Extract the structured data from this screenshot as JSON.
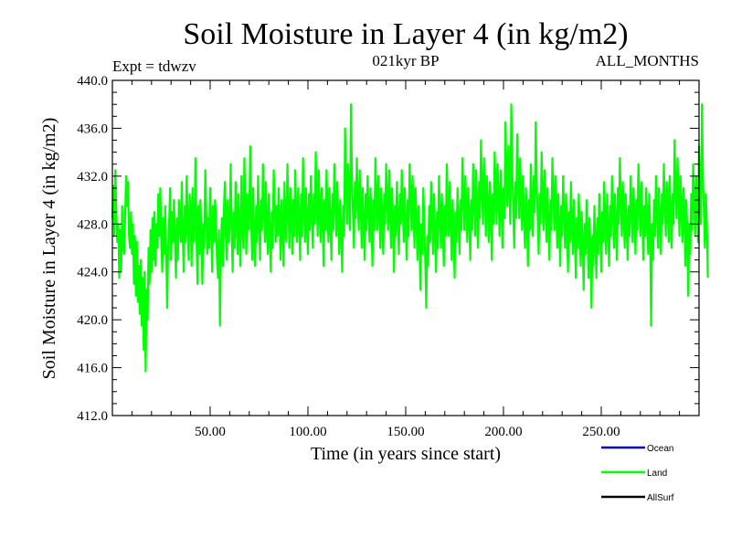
{
  "chart_data": {
    "type": "line",
    "title": "Soil Moisture in Layer 4 (in kg/m2)",
    "subtitle_left": "Expt = tdwzv",
    "subtitle_center": "021kyr BP",
    "subtitle_right": "ALL_MONTHS",
    "xlabel": "Time (in years since start)",
    "ylabel": "Soil Moisture in Layer 4 (in kg/m2)",
    "xlim": [
      0,
      300
    ],
    "ylim": [
      412,
      440
    ],
    "x_ticks": [
      {
        "value": 50,
        "label": "50.00"
      },
      {
        "value": 100,
        "label": "100.00"
      },
      {
        "value": 150,
        "label": "150.00"
      },
      {
        "value": 200,
        "label": "200.00"
      },
      {
        "value": 250,
        "label": "250.00"
      }
    ],
    "y_ticks": [
      {
        "value": 412,
        "label": "412.0"
      },
      {
        "value": 416,
        "label": "416.0"
      },
      {
        "value": 420,
        "label": "420.0"
      },
      {
        "value": 424,
        "label": "424.0"
      },
      {
        "value": 428,
        "label": "428.0"
      },
      {
        "value": 432,
        "label": "432.0"
      },
      {
        "value": 436,
        "label": "436.0"
      },
      {
        "value": 440,
        "label": "440.0"
      }
    ],
    "legend": [
      {
        "name": "Ocean",
        "color": "#0000cc"
      },
      {
        "name": "Land",
        "color": "#00ff00"
      },
      {
        "name": "AllSurf",
        "color": "#000000"
      }
    ],
    "series": [
      {
        "name": "Land",
        "color": "#00ff00",
        "x_start": 0,
        "x_step": 0.5,
        "values": [
          428.5,
          431.2,
          427.0,
          432.5,
          429.0,
          426.5,
          428.0,
          423.5,
          427.5,
          424.0,
          429.5,
          426.0,
          425.5,
          428.5,
          432.0,
          429.5,
          431.5,
          427.0,
          426.0,
          429.0,
          425.5,
          428.0,
          423.0,
          427.0,
          422.0,
          426.5,
          421.5,
          424.5,
          420.5,
          425.0,
          419.5,
          423.5,
          417.5,
          424.0,
          415.7,
          422.5,
          420.0,
          426.0,
          423.0,
          427.5,
          424.0,
          428.5,
          425.0,
          429.0,
          424.5,
          428.0,
          426.0,
          430.5,
          427.0,
          431.0,
          426.5,
          424.0,
          428.5,
          425.5,
          429.5,
          426.0,
          421.0,
          426.0,
          428.0,
          431.0,
          425.0,
          429.0,
          426.5,
          430.0,
          427.0,
          423.5,
          428.5,
          425.0,
          430.0,
          428.0,
          426.5,
          431.5,
          427.0,
          424.0,
          429.5,
          426.5,
          432.0,
          428.0,
          425.0,
          430.5,
          429.0,
          424.5,
          431.0,
          426.5,
          428.0,
          433.5,
          427.0,
          423.0,
          429.5,
          425.5,
          430.0,
          427.0,
          423.0,
          428.0,
          426.0,
          432.5,
          429.0,
          425.5,
          428.5,
          426.0,
          431.0,
          427.5,
          424.0,
          429.5,
          426.5,
          430.0,
          428.5,
          425.0,
          423.5,
          427.5,
          419.5,
          426.0,
          428.5,
          424.5,
          429.0,
          431.5,
          427.0,
          425.0,
          430.0,
          426.5,
          428.0,
          433.0,
          427.5,
          424.0,
          429.0,
          426.0,
          431.5,
          428.5,
          425.5,
          430.5,
          427.0,
          424.5,
          432.0,
          428.0,
          426.0,
          433.5,
          429.0,
          425.5,
          430.5,
          427.5,
          429.0,
          434.5,
          428.0,
          425.0,
          431.0,
          427.0,
          424.5,
          429.5,
          426.5,
          432.0,
          428.5,
          425.0,
          430.0,
          427.5,
          433.0,
          429.0,
          426.5,
          431.5,
          428.0,
          425.5,
          430.5,
          427.0,
          424.0,
          429.0,
          426.0,
          432.5,
          430.0,
          426.5,
          429.5,
          427.0,
          431.0,
          428.5,
          425.0,
          430.0,
          427.5,
          424.5,
          431.5,
          428.0,
          426.5,
          433.0,
          429.5,
          426.0,
          431.0,
          428.5,
          425.5,
          430.0,
          427.0,
          432.5,
          429.0,
          426.5,
          431.0,
          428.5,
          425.0,
          430.5,
          427.0,
          433.5,
          429.5,
          426.5,
          431.0,
          428.0,
          425.5,
          430.5,
          427.5,
          432.0,
          429.0,
          426.0,
          430.5,
          428.0,
          434.0,
          430.0,
          427.0,
          432.5,
          429.5,
          426.5,
          431.0,
          428.5,
          424.5,
          430.0,
          427.5,
          432.5,
          429.0,
          426.5,
          431.0,
          428.0,
          425.0,
          430.5,
          427.5,
          433.0,
          430.0,
          427.0,
          431.5,
          428.5,
          425.5,
          430.0,
          427.5,
          424.0,
          429.5,
          427.0,
          436.0,
          431.0,
          428.0,
          433.0,
          430.5,
          427.5,
          438.0,
          432.0,
          429.0,
          426.0,
          431.5,
          428.5,
          433.5,
          430.0,
          427.5,
          432.5,
          429.5,
          426.0,
          431.0,
          428.0,
          425.0,
          430.5,
          427.5,
          432.0,
          429.5,
          426.5,
          431.0,
          428.0,
          424.5,
          430.0,
          427.5,
          433.5,
          430.5,
          427.5,
          432.0,
          429.0,
          426.0,
          431.0,
          428.5,
          425.5,
          430.5,
          428.0,
          433.0,
          430.0,
          427.5,
          432.5,
          429.0,
          426.0,
          431.0,
          428.5,
          424.0,
          429.5,
          427.0,
          431.5,
          428.5,
          425.5,
          430.5,
          428.0,
          432.5,
          429.5,
          426.5,
          431.0,
          428.0,
          425.0,
          430.0,
          427.0,
          433.0,
          430.5,
          427.5,
          432.0,
          429.5,
          426.0,
          431.0,
          428.5,
          425.0,
          429.5,
          427.0,
          422.5,
          428.0,
          425.5,
          431.0,
          428.0,
          425.0,
          421.0,
          427.0,
          424.5,
          429.5,
          426.5,
          431.5,
          428.5,
          425.5,
          430.5,
          427.5,
          424.0,
          429.0,
          426.0,
          432.0,
          429.0,
          426.0,
          430.5,
          427.5,
          424.5,
          429.5,
          427.0,
          433.0,
          430.0,
          427.0,
          431.5,
          428.5,
          425.0,
          430.0,
          427.5,
          423.5,
          429.0,
          426.5,
          431.0,
          428.5,
          425.5,
          430.0,
          427.5,
          433.5,
          430.5,
          427.5,
          432.0,
          429.5,
          426.5,
          431.0,
          428.5,
          425.0,
          430.0,
          427.5,
          433.0,
          430.0,
          427.0,
          432.5,
          429.5,
          426.0,
          431.5,
          428.5,
          435.0,
          431.0,
          428.0,
          433.5,
          430.5,
          427.0,
          432.0,
          429.5,
          426.5,
          431.5,
          428.5,
          425.0,
          430.5,
          428.0,
          434.0,
          431.0,
          428.0,
          433.0,
          430.0,
          427.0,
          432.5,
          429.5,
          426.0,
          431.0,
          428.5,
          436.5,
          432.5,
          429.5,
          434.5,
          431.0,
          428.0,
          438.0,
          432.5,
          429.0,
          426.0,
          431.5,
          428.5,
          435.5,
          431.5,
          428.5,
          433.5,
          430.5,
          427.5,
          432.0,
          429.0,
          426.0,
          431.0,
          428.5,
          424.5,
          430.0,
          427.5,
          433.0,
          430.0,
          427.0,
          432.0,
          429.0,
          436.5,
          431.5,
          428.5,
          425.5,
          430.5,
          428.0,
          434.0,
          430.5,
          427.5,
          432.5,
          429.5,
          426.5,
          431.0,
          428.0,
          425.0,
          430.0,
          427.5,
          433.5,
          430.5,
          427.5,
          432.0,
          429.0,
          426.0,
          430.5,
          428.0,
          424.5,
          429.5,
          427.0,
          432.0,
          429.0,
          426.0,
          430.5,
          427.5,
          424.0,
          429.0,
          426.5,
          431.5,
          428.5,
          425.5,
          430.0,
          427.0,
          423.5,
          428.5,
          426.0,
          430.5,
          427.5,
          424.5,
          429.0,
          426.5,
          422.5,
          428.0,
          425.5,
          430.0,
          427.0,
          423.5,
          428.5,
          426.0,
          421.0,
          427.0,
          424.5,
          429.5,
          426.5,
          423.5,
          428.5,
          425.5,
          430.5,
          427.5,
          424.0,
          429.0,
          426.5,
          431.5,
          428.5,
          425.5,
          430.5,
          427.5,
          424.5,
          429.5,
          427.0,
          432.0,
          429.0,
          426.0,
          430.5,
          428.0,
          425.0,
          431.0,
          428.0,
          433.5,
          430.0,
          427.0,
          431.5,
          429.0,
          426.0,
          430.5,
          428.0,
          425.0,
          429.5,
          427.0,
          432.0,
          429.5,
          426.5,
          431.0,
          428.5,
          425.5,
          430.0,
          427.5,
          433.0,
          430.0,
          427.0,
          431.5,
          428.5,
          425.0,
          429.5,
          427.0,
          431.0,
          428.5,
          425.5,
          430.5,
          427.5,
          419.5,
          428.0,
          425.0,
          430.0,
          427.0,
          432.0,
          429.0,
          426.0,
          431.0,
          428.0,
          425.5,
          430.5,
          428.0,
          433.0,
          430.0,
          427.0,
          431.5,
          429.0,
          426.5,
          432.0,
          429.0,
          426.0,
          430.5,
          428.0,
          435.0,
          431.0,
          428.5,
          433.5,
          430.5,
          427.0,
          432.0,
          429.5,
          426.5,
          431.0,
          428.5,
          424.5,
          430.0,
          427.5,
          422.0,
          428.0,
          425.5,
          430.5,
          427.5,
          433.0,
          430.0,
          427.0,
          432.0,
          429.5,
          426.5,
          434.5,
          431.0,
          428.0,
          438.0,
          432.0,
          429.0,
          426.0,
          430.5,
          428.0,
          423.5
        ]
      }
    ]
  }
}
